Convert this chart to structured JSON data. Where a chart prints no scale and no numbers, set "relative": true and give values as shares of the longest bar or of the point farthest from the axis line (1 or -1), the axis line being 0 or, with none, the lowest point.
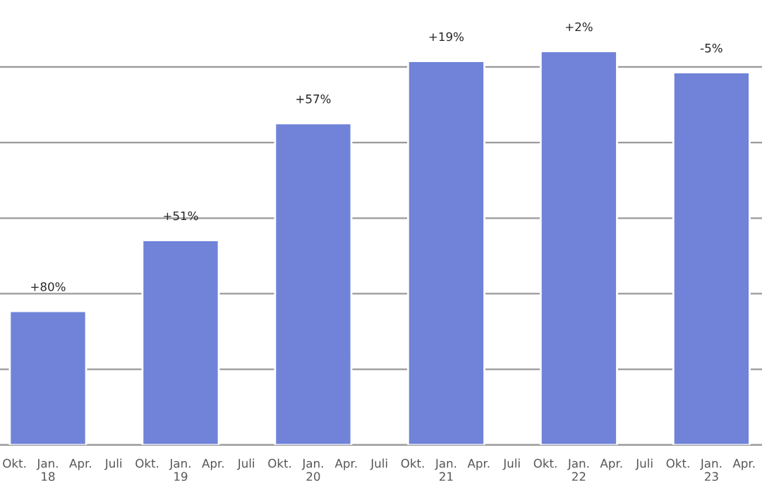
{
  "chart_data": {
    "type": "bar",
    "relative": true,
    "x": [
      "2018-01",
      "2019-01",
      "2020-01",
      "2021-01",
      "2022-01",
      "2023-01"
    ],
    "series": [
      {
        "color": "#7083d8",
        "values": [
          0.34,
          0.52,
          0.817,
          0.975,
          1,
          0.946
        ]
      }
    ],
    "annotations": [
      {
        "text": "+80%",
        "x": "2018-01",
        "y": 0.34
      },
      {
        "text": "+51%",
        "x": "2019-01",
        "y": 0.52
      },
      {
        "text": "+57%",
        "x": "2020-01",
        "y": 0.817
      },
      {
        "text": "+19%",
        "x": "2021-01",
        "y": 0.975
      },
      {
        "text": "+2%",
        "x": "2022-01",
        "y": 1
      },
      {
        "text": "-5%",
        "x": "2023-01",
        "y": 0.946
      }
    ],
    "xlim": [
      "2017-08-22",
      "2023-05-20"
    ],
    "xticks": [
      {
        "value": "2017-10",
        "label": "Okt."
      },
      {
        "value": "2018-01",
        "label": "Jan.\n18"
      },
      {
        "value": "2018-04",
        "label": "Apr."
      },
      {
        "value": "2018-07",
        "label": "Juli"
      },
      {
        "value": "2018-10",
        "label": "Okt."
      },
      {
        "value": "2019-01",
        "label": "Jan.\n19"
      },
      {
        "value": "2019-04",
        "label": "Apr."
      },
      {
        "value": "2019-07",
        "label": "Juli"
      },
      {
        "value": "2019-10",
        "label": "Okt."
      },
      {
        "value": "2020-01",
        "label": "Jan.\n20"
      },
      {
        "value": "2020-04",
        "label": "Apr."
      },
      {
        "value": "2020-07",
        "label": "Juli"
      },
      {
        "value": "2020-10",
        "label": "Okt."
      },
      {
        "value": "2021-01",
        "label": "Jan.\n21"
      },
      {
        "value": "2021-04",
        "label": "Apr."
      },
      {
        "value": "2021-07",
        "label": "Juli"
      },
      {
        "value": "2021-10",
        "label": "Okt."
      },
      {
        "value": "2022-01",
        "label": "Jan.\n22"
      },
      {
        "value": "2022-04",
        "label": "Apr."
      },
      {
        "value": "2022-07",
        "label": "Juli"
      },
      {
        "value": "2022-10",
        "label": "Okt."
      },
      {
        "value": "2023-01",
        "label": "Jan.\n23"
      },
      {
        "value": "2023-04",
        "label": "Apr."
      }
    ],
    "grid": "y",
    "tick_labels": "x"
  }
}
